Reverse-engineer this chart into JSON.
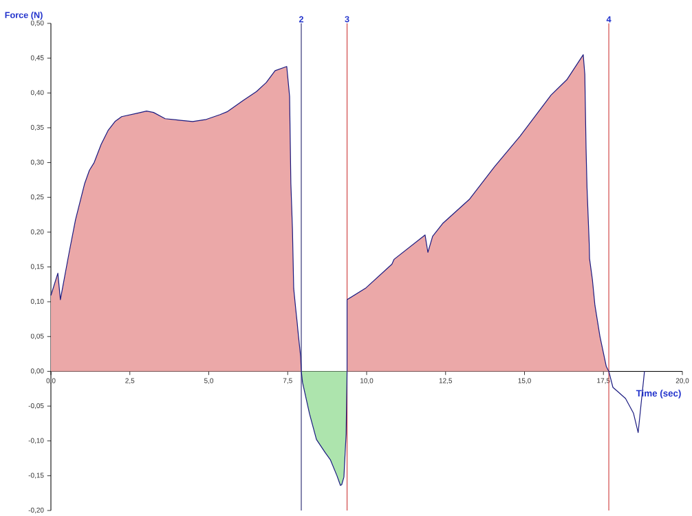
{
  "chart_data": {
    "type": "area",
    "xlabel": "Time (sec)",
    "ylabel": "Force (N)",
    "xlim": [
      0,
      20
    ],
    "ylim": [
      -0.2,
      0.5
    ],
    "xticks": [
      {
        "value": 0,
        "label": "0,0"
      },
      {
        "value": 2.5,
        "label": "2,5"
      },
      {
        "value": 5,
        "label": "5,0"
      },
      {
        "value": 7.5,
        "label": "7,5"
      },
      {
        "value": 10,
        "label": "10,0"
      },
      {
        "value": 12.5,
        "label": "12,5"
      },
      {
        "value": 15,
        "label": "15,0"
      },
      {
        "value": 17.5,
        "label": "17,5"
      },
      {
        "value": 20,
        "label": "20,0"
      }
    ],
    "yticks": [
      {
        "value": -0.2,
        "label": "-0,20"
      },
      {
        "value": -0.15,
        "label": "-0,15"
      },
      {
        "value": -0.1,
        "label": "-0,10"
      },
      {
        "value": -0.05,
        "label": "-0,05"
      },
      {
        "value": 0,
        "label": "0,00"
      },
      {
        "value": 0.05,
        "label": "0,05"
      },
      {
        "value": 0.1,
        "label": "0,10"
      },
      {
        "value": 0.15,
        "label": "0,15"
      },
      {
        "value": 0.2,
        "label": "0,20"
      },
      {
        "value": 0.25,
        "label": "0,25"
      },
      {
        "value": 0.3,
        "label": "0,30"
      },
      {
        "value": 0.35,
        "label": "0,35"
      },
      {
        "value": 0.4,
        "label": "0,40"
      },
      {
        "value": 0.45,
        "label": "0,45"
      },
      {
        "value": 0.5,
        "label": "0,50"
      }
    ],
    "series": [
      {
        "color": "#eba8a8",
        "x": [
          0,
          0.22,
          0.3,
          0.57,
          0.78,
          1.07,
          1.22,
          1.37,
          1.59,
          1.81,
          2.03,
          2.24,
          2.75,
          3.03,
          3.25,
          3.62,
          4.05,
          4.49,
          4.92,
          5.36,
          5.58,
          6.08,
          6.51,
          6.82,
          7.1,
          7.47,
          7.56,
          7.6,
          7.65,
          7.69,
          7.76,
          7.8,
          7.82,
          7.91,
          7.93
        ],
        "values": [
          0.109,
          0.141,
          0.103,
          0.169,
          0.218,
          0.27,
          0.289,
          0.3,
          0.326,
          0.346,
          0.359,
          0.366,
          0.371,
          0.374,
          0.372,
          0.363,
          0.361,
          0.359,
          0.362,
          0.369,
          0.373,
          0.389,
          0.402,
          0.415,
          0.432,
          0.438,
          0.395,
          0.27,
          0.205,
          0.119,
          0.087,
          0.07,
          0.06,
          0.021,
          0.0
        ]
      },
      {
        "color": "#ade4ad",
        "x": [
          7.93,
          7.97,
          8.19,
          8.41,
          8.69,
          8.85,
          9.06,
          9.17,
          9.21,
          9.28,
          9.35,
          9.38
        ],
        "values": [
          0.0,
          -0.016,
          -0.061,
          -0.098,
          -0.117,
          -0.127,
          -0.15,
          -0.164,
          -0.163,
          -0.152,
          -0.09,
          0.0
        ]
      },
      {
        "color": "#eba8a8",
        "x": [
          9.38,
          9.38,
          9.98,
          10.8,
          10.87,
          11.85,
          11.94,
          12.09,
          12.42,
          13.25,
          14.05,
          14.86,
          15.36,
          15.84,
          16.34,
          16.86,
          16.91,
          16.95,
          16.98,
          17.05,
          17.06,
          17.15,
          17.23,
          17.39,
          17.59,
          17.67
        ],
        "values": [
          0.0,
          0.103,
          0.12,
          0.154,
          0.161,
          0.196,
          0.171,
          0.194,
          0.213,
          0.247,
          0.294,
          0.338,
          0.368,
          0.397,
          0.419,
          0.455,
          0.427,
          0.32,
          0.264,
          0.183,
          0.162,
          0.132,
          0.095,
          0.05,
          0.007,
          0.0
        ]
      },
      {
        "type": "line",
        "color": "#1a1a80",
        "x": [
          17.67,
          17.8,
          17.95,
          18.2,
          18.45,
          18.6,
          18.69,
          18.8
        ],
        "values": [
          0.0,
          -0.023,
          -0.029,
          -0.039,
          -0.06,
          -0.088,
          -0.048,
          0.0
        ]
      }
    ],
    "ref_lines": [
      {
        "axis": "x",
        "value": 7.93,
        "color": "#1a1a66"
      },
      {
        "axis": "x",
        "value": 9.38,
        "color": "#cc3333"
      },
      {
        "axis": "x",
        "value": 17.67,
        "color": "#cc3333"
      }
    ],
    "annotations": [
      {
        "text": "2",
        "x": 7.93,
        "y": 0.5
      },
      {
        "text": "3",
        "x": 9.38,
        "y": 0.5
      },
      {
        "text": "4",
        "x": 17.67,
        "y": 0.5
      }
    ],
    "grid": false,
    "marker": "none",
    "line_style": "solid"
  }
}
